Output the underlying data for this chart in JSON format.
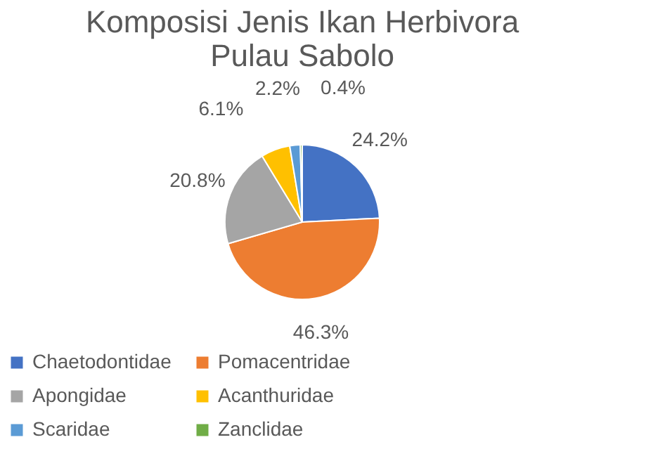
{
  "chart_data": {
    "type": "pie",
    "title": [
      "Komposisi Jenis Ikan Herbivora",
      "Pulau Sabolo"
    ],
    "categories": [
      "Chaetodontidae",
      "Pomacentridae",
      "Apongidae",
      "Acanthuridae",
      "Scaridae",
      "Zanclidae"
    ],
    "values": [
      24.2,
      46.3,
      20.8,
      6.1,
      2.2,
      0.4
    ],
    "colors": [
      "#4472c4",
      "#ed7d31",
      "#a5a5a5",
      "#ffc000",
      "#5b9bd5",
      "#70ad47"
    ],
    "value_labels": [
      "24.2%",
      "46.3%",
      "20.8%",
      "6.1%",
      "2.2%",
      "0.4%"
    ],
    "legend": "bottom"
  }
}
